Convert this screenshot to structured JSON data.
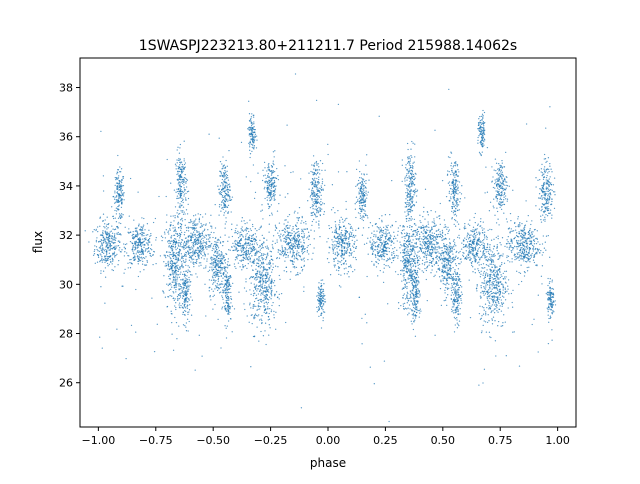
{
  "chart_data": {
    "type": "scatter",
    "title": "1SWASPJ223213.80+211211.7 Period 215988.14062s",
    "xlabel": "phase",
    "ylabel": "flux",
    "xlim": [
      -1.08,
      1.08
    ],
    "ylim": [
      24.2,
      39.2
    ],
    "xticks": [
      -1.0,
      -0.75,
      -0.5,
      -0.25,
      0.0,
      0.25,
      0.5,
      0.75,
      1.0
    ],
    "xtick_labels": [
      "−1.00",
      "−0.75",
      "−0.50",
      "−0.25",
      "0.00",
      "0.25",
      "0.50",
      "0.75",
      "1.00"
    ],
    "yticks": [
      26,
      28,
      30,
      32,
      34,
      36,
      38
    ],
    "ytick_labels": [
      "26",
      "28",
      "30",
      "32",
      "34",
      "36",
      "38"
    ],
    "grid": false,
    "legend": "none",
    "point_color": "#1f77b4",
    "baseline_flux": 31.6,
    "clusters": [
      {
        "x": -0.96,
        "y": 31.6,
        "sx": 0.028,
        "sy": 0.5
      },
      {
        "x": -0.91,
        "y": 33.6,
        "sx": 0.012,
        "sy": 0.5
      },
      {
        "x": -0.82,
        "y": 31.6,
        "sx": 0.03,
        "sy": 0.45
      },
      {
        "x": -0.67,
        "y": 30.8,
        "sx": 0.02,
        "sy": 0.9
      },
      {
        "x": -0.64,
        "y": 34.0,
        "sx": 0.012,
        "sy": 0.7
      },
      {
        "x": -0.62,
        "y": 29.6,
        "sx": 0.01,
        "sy": 0.6
      },
      {
        "x": -0.58,
        "y": 31.7,
        "sx": 0.035,
        "sy": 0.55
      },
      {
        "x": -0.48,
        "y": 30.8,
        "sx": 0.02,
        "sy": 0.6
      },
      {
        "x": -0.45,
        "y": 33.8,
        "sx": 0.012,
        "sy": 0.6
      },
      {
        "x": -0.44,
        "y": 29.6,
        "sx": 0.01,
        "sy": 0.6
      },
      {
        "x": -0.36,
        "y": 31.6,
        "sx": 0.03,
        "sy": 0.45
      },
      {
        "x": -0.33,
        "y": 36.1,
        "sx": 0.008,
        "sy": 0.4
      },
      {
        "x": -0.28,
        "y": 30.0,
        "sx": 0.03,
        "sy": 0.9
      },
      {
        "x": -0.25,
        "y": 34.0,
        "sx": 0.015,
        "sy": 0.5
      },
      {
        "x": -0.15,
        "y": 31.6,
        "sx": 0.035,
        "sy": 0.5
      },
      {
        "x": -0.05,
        "y": 33.8,
        "sx": 0.015,
        "sy": 0.6
      },
      {
        "x": -0.03,
        "y": 29.4,
        "sx": 0.008,
        "sy": 0.4
      },
      {
        "x": 0.06,
        "y": 31.6,
        "sx": 0.03,
        "sy": 0.5
      },
      {
        "x": 0.15,
        "y": 33.6,
        "sx": 0.012,
        "sy": 0.5
      },
      {
        "x": 0.24,
        "y": 31.6,
        "sx": 0.03,
        "sy": 0.45
      },
      {
        "x": 0.35,
        "y": 30.8,
        "sx": 0.02,
        "sy": 0.9
      },
      {
        "x": 0.36,
        "y": 34.0,
        "sx": 0.012,
        "sy": 0.7
      },
      {
        "x": 0.38,
        "y": 29.6,
        "sx": 0.01,
        "sy": 0.6
      },
      {
        "x": 0.44,
        "y": 31.7,
        "sx": 0.035,
        "sy": 0.55
      },
      {
        "x": 0.52,
        "y": 30.8,
        "sx": 0.02,
        "sy": 0.6
      },
      {
        "x": 0.55,
        "y": 33.8,
        "sx": 0.012,
        "sy": 0.6
      },
      {
        "x": 0.56,
        "y": 29.6,
        "sx": 0.01,
        "sy": 0.6
      },
      {
        "x": 0.64,
        "y": 31.6,
        "sx": 0.03,
        "sy": 0.45
      },
      {
        "x": 0.67,
        "y": 36.1,
        "sx": 0.008,
        "sy": 0.4
      },
      {
        "x": 0.72,
        "y": 30.0,
        "sx": 0.03,
        "sy": 0.9
      },
      {
        "x": 0.75,
        "y": 34.0,
        "sx": 0.015,
        "sy": 0.5
      },
      {
        "x": 0.85,
        "y": 31.6,
        "sx": 0.035,
        "sy": 0.5
      },
      {
        "x": 0.95,
        "y": 33.8,
        "sx": 0.015,
        "sy": 0.6
      },
      {
        "x": 0.97,
        "y": 29.4,
        "sx": 0.008,
        "sy": 0.4
      }
    ]
  }
}
